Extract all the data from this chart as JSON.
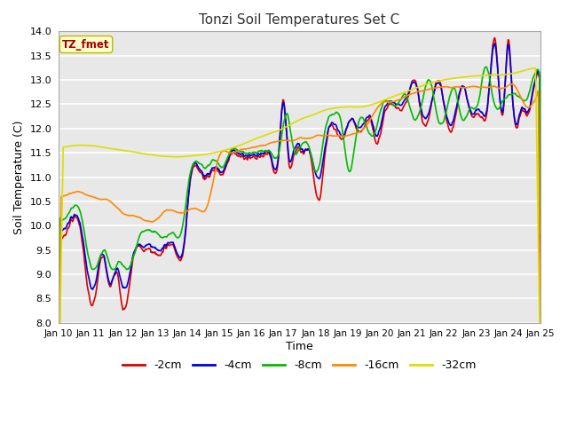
{
  "title": "Tonzi Soil Temperatures Set C",
  "xlabel": "Time",
  "ylabel": "Soil Temperature (C)",
  "ylim": [
    8.0,
    14.0
  ],
  "yticks": [
    8.0,
    8.5,
    9.0,
    9.5,
    10.0,
    10.5,
    11.0,
    11.5,
    12.0,
    12.5,
    13.0,
    13.5,
    14.0
  ],
  "series": {
    "-2cm": {
      "color": "#dd0000",
      "linewidth": 1.2
    },
    "-4cm": {
      "color": "#0000dd",
      "linewidth": 1.2
    },
    "-8cm": {
      "color": "#00bb00",
      "linewidth": 1.2
    },
    "-16cm": {
      "color": "#ff8800",
      "linewidth": 1.2
    },
    "-32cm": {
      "color": "#dddd00",
      "linewidth": 1.2
    }
  },
  "legend_label": "TZ_fmet",
  "legend_bg": "#ffffcc",
  "legend_border": "#bbbb00",
  "legend_text_color": "#aa0000",
  "plot_bg": "#e8e8e8",
  "fig_bg": "#ffffff",
  "grid_color": "#ffffff",
  "n_points": 720,
  "x_start": 10.0,
  "x_end": 25.0,
  "xtick_positions": [
    10,
    11,
    12,
    13,
    14,
    15,
    16,
    17,
    18,
    19,
    20,
    21,
    22,
    23,
    24,
    25
  ],
  "xtick_labels": [
    "Jan 10",
    "Jan 11",
    "Jan 12",
    "Jan 13",
    "Jan 14",
    "Jan 15",
    "Jan 16",
    "Jan 17",
    "Jan 18",
    "Jan 19",
    "Jan 20",
    "Jan 21",
    "Jan 22",
    "Jan 23",
    "Jan 24",
    "Jan 25"
  ]
}
